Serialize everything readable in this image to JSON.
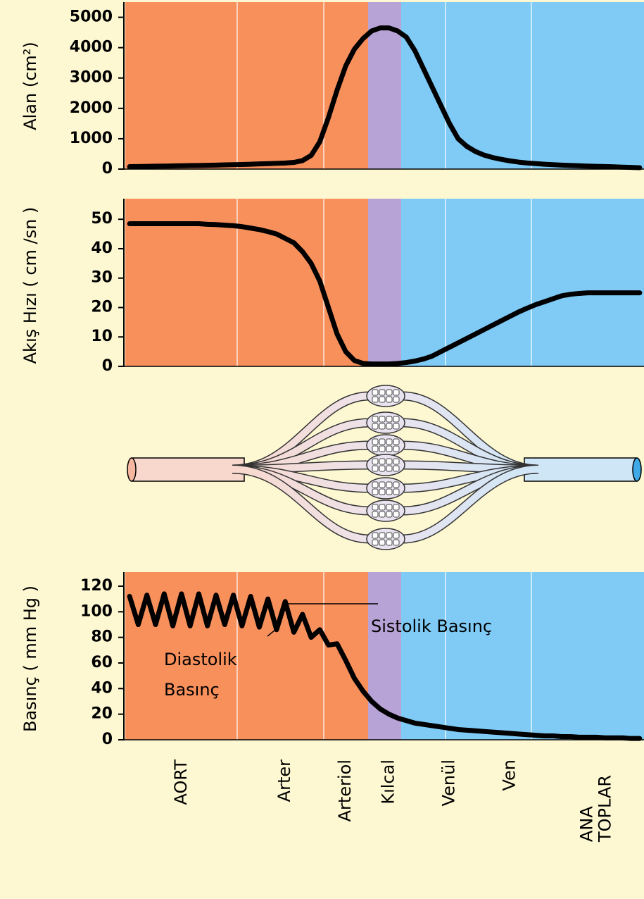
{
  "chart_data": [
    {
      "type": "line",
      "y_label": "Alan (cm²)",
      "ylim": [
        0,
        5500
      ],
      "yticks": [
        0,
        1000,
        2000,
        3000,
        4000,
        5000
      ],
      "color": "#000000",
      "values": [
        80,
        85,
        90,
        95,
        100,
        105,
        110,
        115,
        120,
        125,
        130,
        140,
        145,
        150,
        160,
        170,
        180,
        190,
        200,
        220,
        280,
        450,
        900,
        1700,
        2600,
        3400,
        3950,
        4300,
        4550,
        4650,
        4650,
        4550,
        4350,
        3900,
        3300,
        2700,
        2100,
        1500,
        1000,
        750,
        580,
        460,
        380,
        320,
        270,
        230,
        200,
        180,
        160,
        145,
        130,
        120,
        110,
        100,
        90,
        85,
        75,
        65,
        55,
        45
      ]
    },
    {
      "type": "line",
      "y_label": "Akış Hızı ( cm /sn )",
      "ylim": [
        0,
        57
      ],
      "yticks": [
        0,
        10,
        20,
        30,
        40,
        50
      ],
      "color": "#000000",
      "values": [
        48.5,
        48.5,
        48.5,
        48.5,
        48.5,
        48.5,
        48.5,
        48.5,
        48.5,
        48.3,
        48.2,
        48,
        47.8,
        47.5,
        47,
        46.5,
        45.8,
        45,
        43.5,
        42,
        39,
        35,
        29,
        20,
        11,
        5,
        2,
        1,
        0.8,
        0.8,
        0.8,
        1,
        1.3,
        1.8,
        2.5,
        3.5,
        5,
        6.5,
        8,
        9.5,
        11,
        12.5,
        14,
        15.5,
        17,
        18.5,
        19.8,
        21,
        22,
        23,
        24,
        24.5,
        24.8,
        25,
        25,
        25,
        25,
        25,
        25,
        25
      ]
    },
    {
      "type": "line",
      "y_label": "Basınç ( mm Hg )",
      "ylim": [
        0,
        131
      ],
      "yticks": [
        0,
        20,
        40,
        60,
        80,
        100,
        120
      ],
      "color": "#000000",
      "categories": [
        null,
        null,
        null,
        null,
        null,
        null,
        "AORT",
        null,
        null,
        null,
        null,
        null,
        null,
        null,
        null,
        null,
        null,
        null,
        "Arter",
        null,
        null,
        null,
        null,
        null,
        null,
        "Arteriol",
        null,
        null,
        null,
        null,
        "Kılcal",
        null,
        null,
        null,
        null,
        null,
        null,
        "Venül",
        null,
        null,
        null,
        null,
        null,
        null,
        "Ven",
        null,
        null,
        null,
        null,
        null,
        null,
        null,
        null,
        null,
        "ANA TOPLAR",
        null,
        null,
        null,
        null,
        null
      ],
      "annotations": [
        {
          "lines": [
            "Sistolik Basınç"
          ]
        },
        {
          "lines": [
            "Diastolik",
            "Basınç"
          ]
        }
      ],
      "values": [
        112,
        90,
        113,
        90,
        114,
        89,
        114,
        89,
        114,
        89,
        113,
        90,
        113,
        89,
        112,
        88,
        110,
        86,
        108,
        84,
        98,
        80,
        86,
        74,
        75,
        62,
        48,
        38,
        30,
        24,
        20,
        17,
        15,
        13,
        12,
        11,
        10,
        9,
        8,
        7.5,
        7,
        6.5,
        6,
        5.5,
        5,
        4.5,
        4,
        3.5,
        3,
        3,
        2.5,
        2.5,
        2,
        2,
        2,
        1.5,
        1.5,
        1.5,
        1,
        1
      ]
    }
  ]
}
